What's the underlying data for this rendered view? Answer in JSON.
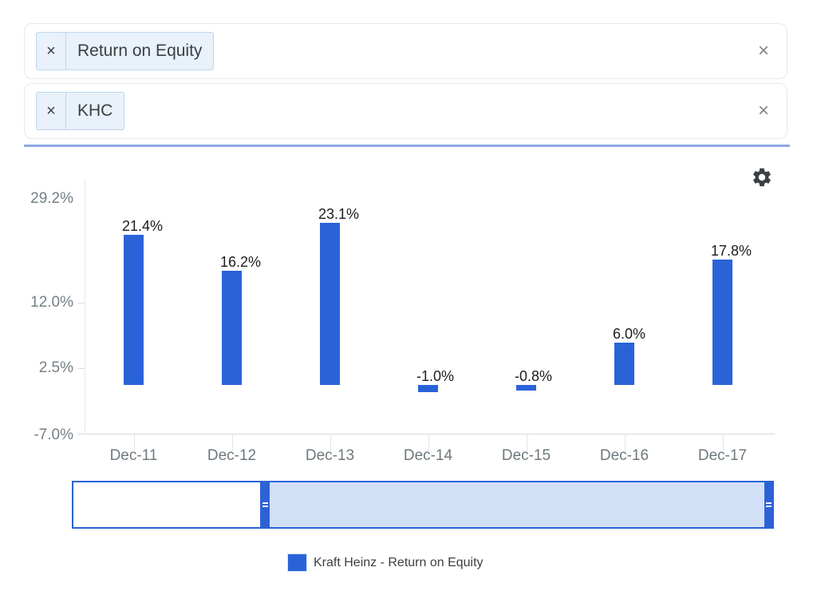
{
  "filters": {
    "metric": {
      "remove_glyph": "×",
      "label": "Return on Equity",
      "clear_glyph": "×"
    },
    "ticker": {
      "remove_glyph": "×",
      "label": "KHC",
      "clear_glyph": "×"
    }
  },
  "chart_data": {
    "type": "bar",
    "title": "",
    "categories": [
      "Dec-11",
      "Dec-12",
      "Dec-13",
      "Dec-14",
      "Dec-15",
      "Dec-16",
      "Dec-17"
    ],
    "values": [
      21.4,
      16.2,
      23.1,
      -1.0,
      -0.8,
      6.0,
      17.8
    ],
    "value_labels": [
      "21.4%",
      "16.2%",
      "23.1%",
      "-1.0%",
      "-0.8%",
      "6.0%",
      "17.8%"
    ],
    "ytick_labels": [
      "29.2%",
      "12.0%",
      "2.5%",
      "-7.0%"
    ],
    "ylim": [
      -7.0,
      29.2
    ],
    "series": [
      {
        "name": "Kraft Heinz - Return on Equity",
        "color": "#2a63d8"
      }
    ],
    "legend_position": "bottom",
    "grid": false
  },
  "legend": {
    "label": "Kraft Heinz - Return on Equity",
    "swatch_color": "#2a63d8"
  },
  "icons": {
    "settings": "gear-icon",
    "range_handle": "grip-icon"
  },
  "colors": {
    "bar": "#2a63d8",
    "slider_border": "#2c62d6",
    "slider_selected": "#d2e0f7",
    "tag_background": "#e9f1fa",
    "tag_border": "#bdd7ef",
    "focus_underline": "#8ca7e6",
    "axis_text": "#6d787e",
    "value_text": "#1b1d1f"
  }
}
